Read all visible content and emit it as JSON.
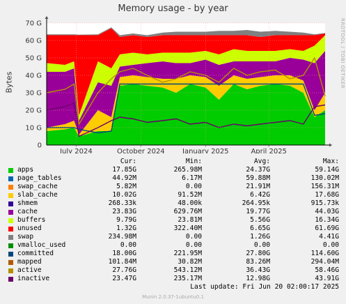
{
  "chart_data": {
    "type": "area",
    "title": "Memory usage - by year",
    "ylabel": "Bytes",
    "side_label": "RRDTOOL / TOBI OETIKER",
    "ylim": [
      0,
      70
    ],
    "y_unit": "G",
    "y_ticks": [
      "0",
      "10 G",
      "20 G",
      "30 G",
      "40 G",
      "50 G",
      "60 G",
      "70 G"
    ],
    "x_range": [
      "2024-05-20",
      "2025-06-20"
    ],
    "x_ticks": [
      {
        "date": "2024-07-01",
        "label": "July 2024"
      },
      {
        "date": "2024-10-01",
        "label": "October 2024"
      },
      {
        "date": "2025-01-01",
        "label": "January 2025"
      },
      {
        "date": "2025-04-01",
        "label": "April 2025"
      }
    ],
    "columns": [
      "Cur:",
      "Min:",
      "Avg:",
      "Max:"
    ],
    "series": [
      {
        "name": "apps",
        "color": "#00cc00",
        "cur": "17.85G",
        "min": "265.98M",
        "avg": "24.37G",
        "max": "59.14G"
      },
      {
        "name": "page_tables",
        "color": "#0066b3",
        "cur": "44.92M",
        "min": "6.17M",
        "avg": "59.88M",
        "max": "130.02M"
      },
      {
        "name": "swap_cache",
        "color": "#ff8000",
        "cur": "5.82M",
        "min": "0.00",
        "avg": "21.91M",
        "max": "156.31M"
      },
      {
        "name": "slab_cache",
        "color": "#ffcc00",
        "cur": "10.02G",
        "min": "91.52M",
        "avg": "6.42G",
        "max": "17.68G"
      },
      {
        "name": "shmem",
        "color": "#330099",
        "cur": "268.33k",
        "min": "48.00k",
        "avg": "264.95k",
        "max": "915.73k"
      },
      {
        "name": "cache",
        "color": "#990099",
        "cur": "23.83G",
        "min": "629.76M",
        "avg": "19.77G",
        "max": "44.03G"
      },
      {
        "name": "buffers",
        "color": "#ccff00",
        "cur": "9.79G",
        "min": "23.81M",
        "avg": "5.56G",
        "max": "16.34G"
      },
      {
        "name": "unused",
        "color": "#ff0000",
        "cur": "1.32G",
        "min": "322.40M",
        "avg": "6.65G",
        "max": "61.69G"
      },
      {
        "name": "swap",
        "color": "#808080",
        "cur": "234.98M",
        "min": "0.00",
        "avg": "1.26G",
        "max": "4.41G"
      },
      {
        "name": "vmalloc_used",
        "color": "#008f00",
        "cur": "0.00",
        "min": "0.00",
        "avg": "0.00",
        "max": "0.00"
      },
      {
        "name": "committed",
        "color": "#00487d",
        "cur": "18.00G",
        "min": "221.95M",
        "avg": "27.80G",
        "max": "114.60G"
      },
      {
        "name": "mapped",
        "color": "#b35a00",
        "cur": "101.84M",
        "min": "30.82M",
        "avg": "83.26M",
        "max": "294.04M"
      },
      {
        "name": "active",
        "color": "#b38f00",
        "cur": "27.76G",
        "min": "543.12M",
        "avg": "36.43G",
        "max": "58.46G"
      },
      {
        "name": "inactive",
        "color": "#6b006b",
        "cur": "23.47G",
        "min": "235.17M",
        "avg": "12.98G",
        "max": "43.91G"
      }
    ],
    "samples": {
      "dates": [
        "2024-05-20",
        "2024-06-15",
        "2024-06-28",
        "2024-07-05",
        "2024-08-01",
        "2024-08-20",
        "2024-09-01",
        "2024-09-20",
        "2024-10-10",
        "2024-11-01",
        "2024-11-20",
        "2024-12-10",
        "2025-01-01",
        "2025-01-20",
        "2025-02-10",
        "2025-03-01",
        "2025-03-20",
        "2025-04-10",
        "2025-05-01",
        "2025-05-20",
        "2025-06-05",
        "2025-06-20"
      ],
      "apps": [
        8,
        9,
        10,
        5,
        8,
        8,
        34,
        35,
        34,
        33,
        30,
        35,
        33,
        26,
        35,
        32,
        34,
        35,
        34,
        30,
        16,
        20
      ],
      "slab_cache": [
        2,
        3,
        4,
        1,
        12,
        8,
        5,
        5,
        5,
        5,
        8,
        5,
        6,
        8,
        5,
        6,
        5,
        5,
        6,
        7,
        4,
        10
      ],
      "cache": [
        32,
        30,
        30,
        8,
        16,
        18,
        6,
        6,
        8,
        10,
        9,
        7,
        10,
        12,
        8,
        10,
        9,
        8,
        10,
        12,
        27,
        24
      ],
      "buffers": [
        5,
        4,
        4,
        3,
        12,
        10,
        7,
        7,
        5,
        5,
        6,
        6,
        5,
        6,
        7,
        6,
        6,
        6,
        5,
        5,
        10,
        9
      ],
      "unused": [
        16,
        17,
        15,
        46,
        15,
        23,
        10,
        10,
        10,
        10,
        10,
        10,
        9,
        11,
        8,
        9,
        8,
        9,
        8,
        9,
        6,
        1
      ],
      "swap": [
        0.5,
        0.5,
        0.5,
        0.3,
        0.5,
        0.5,
        1,
        1,
        1,
        1.5,
        2,
        2,
        2,
        2.5,
        2.5,
        3,
        3,
        2.5,
        2,
        1.5,
        0.5,
        0.3
      ],
      "committed": [
        10,
        10,
        10,
        9,
        7,
        8,
        35,
        35,
        35,
        35,
        35,
        35,
        35,
        35,
        35,
        35,
        35,
        35,
        35,
        35,
        17,
        18
      ],
      "active": [
        30,
        32,
        35,
        12,
        30,
        38,
        42,
        44,
        40,
        36,
        38,
        42,
        40,
        36,
        44,
        40,
        42,
        43,
        38,
        40,
        50,
        28
      ],
      "inactive": [
        20,
        22,
        24,
        5,
        10,
        14,
        16,
        15,
        13,
        14,
        15,
        12,
        13,
        10,
        12,
        11,
        12,
        13,
        14,
        12,
        22,
        23
      ]
    }
  },
  "last_update": "Last update: Fri Jun 20 02:00:17 2025",
  "footer": "Munin 2.0.37-1ubuntu0.1"
}
